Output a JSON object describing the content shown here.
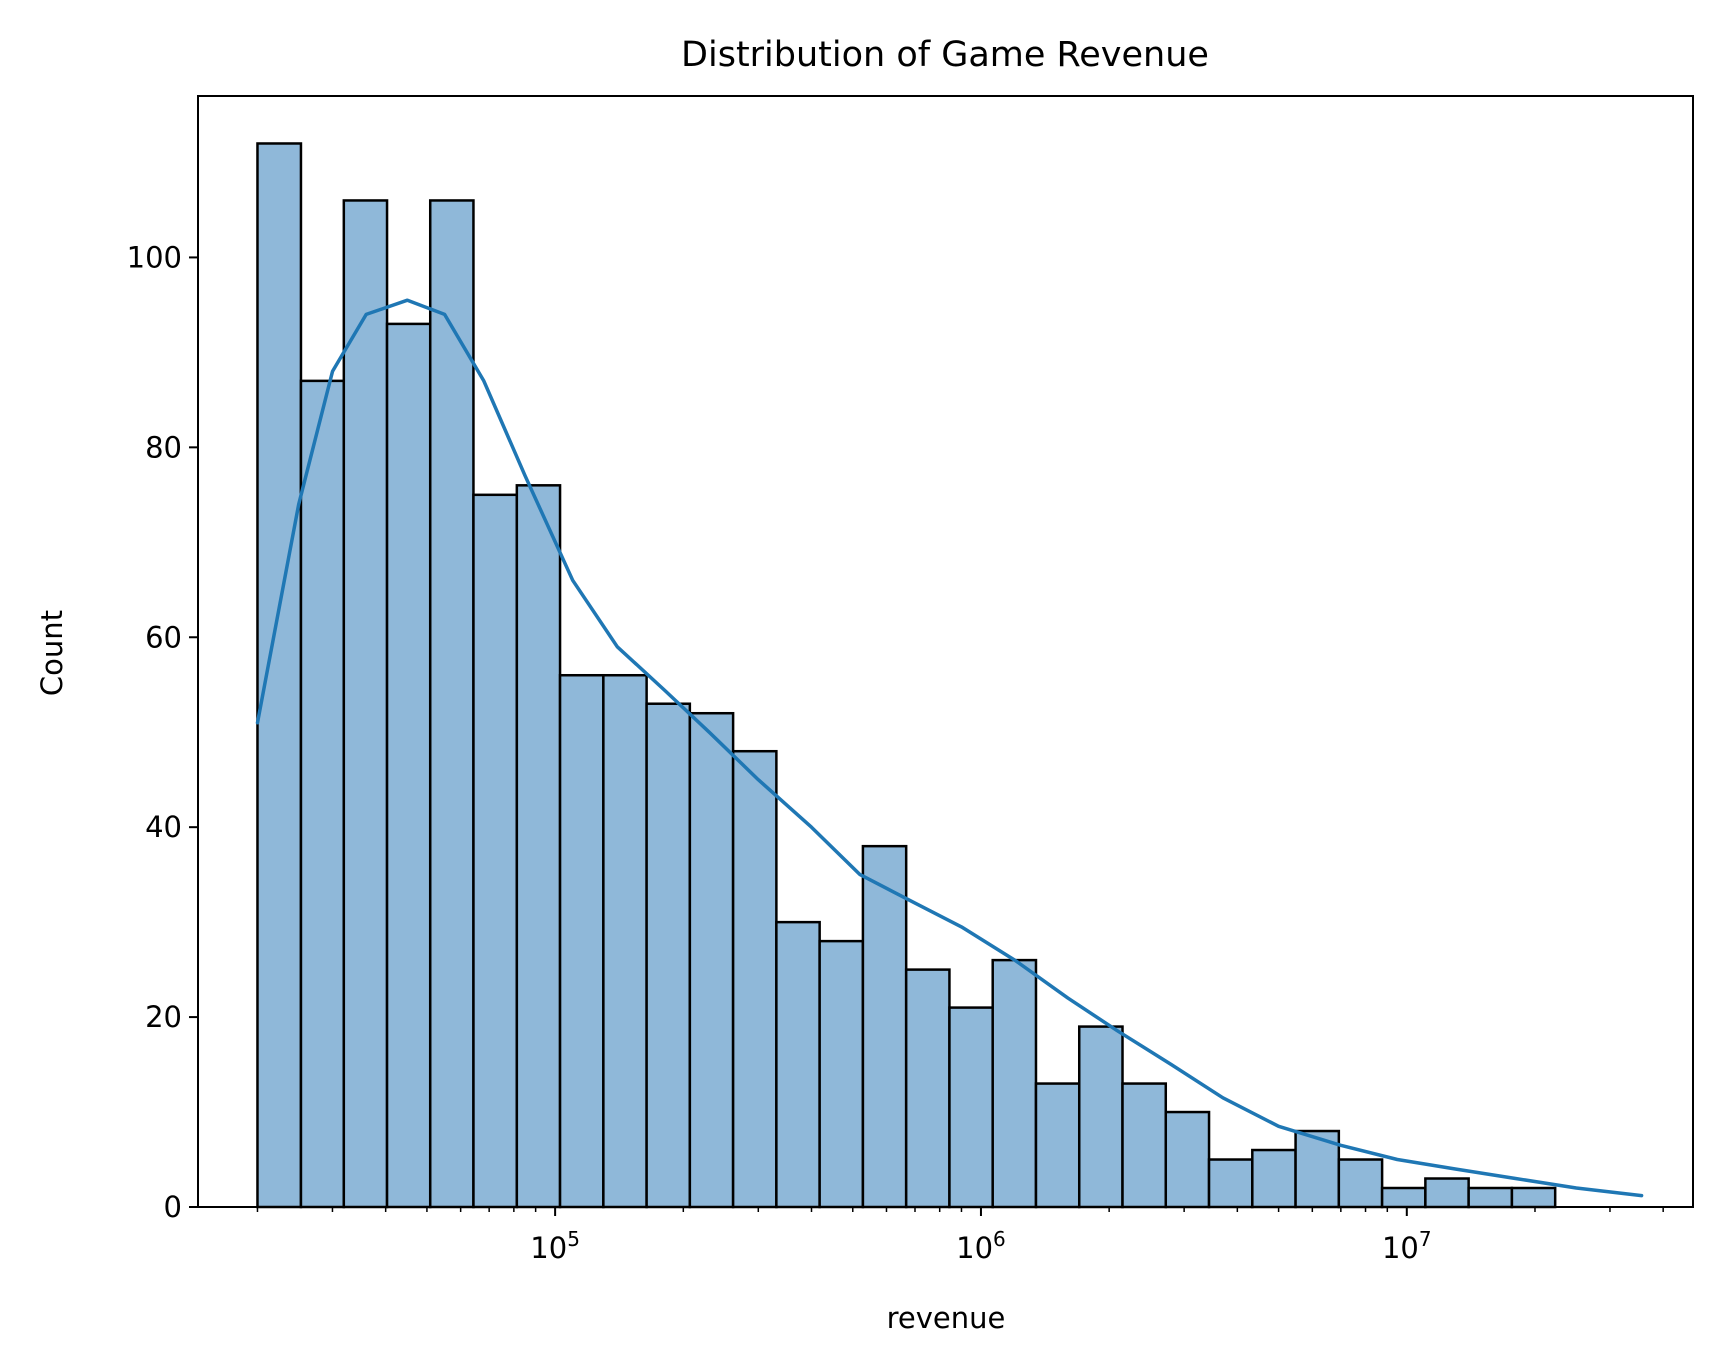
{
  "chart_data": {
    "type": "histogram",
    "title": "Distribution of Game Revenue",
    "xlabel": "revenue",
    "ylabel": "Count",
    "x_scale": "log",
    "xlim": [
      14500,
      47000000
    ],
    "ylim": [
      0,
      117
    ],
    "bar_color": "#8fb8d9",
    "bar_edge_color": "#000000",
    "kde_color": "#1f77b4",
    "grid": false,
    "legend": "none",
    "x_ticks": [
      {
        "value": 100000,
        "base": "10",
        "exp": "5"
      },
      {
        "value": 1000000,
        "base": "10",
        "exp": "6"
      },
      {
        "value": 10000000,
        "base": "10",
        "exp": "7"
      }
    ],
    "y_ticks": [
      0,
      20,
      40,
      60,
      80,
      100
    ],
    "bin_edges": [
      20000,
      25300,
      31900,
      40300,
      50900,
      64300,
      81300,
      102700,
      129800,
      164000,
      207200,
      261800,
      330800,
      418000,
      528200,
      667400,
      843300,
      1065600,
      1346500,
      1701400,
      2149800,
      2716400,
      3432400,
      4337200,
      5480400,
      6924900,
      8750200,
      11056700,
      13971200,
      17653800,
      22306900,
      28186600,
      35616000
    ],
    "counts": [
      112,
      87,
      106,
      93,
      106,
      75,
      76,
      56,
      56,
      53,
      52,
      48,
      30,
      28,
      38,
      25,
      21,
      26,
      13,
      19,
      13,
      10,
      5,
      6,
      8,
      5,
      2,
      3,
      2,
      2,
      0,
      0
    ],
    "kde": {
      "x": [
        20000,
        25000,
        30000,
        36000,
        45000,
        55000,
        68000,
        85000,
        110000,
        140000,
        180000,
        230000,
        300000,
        400000,
        520000,
        700000,
        900000,
        1200000,
        1600000,
        2100000,
        2800000,
        3700000,
        5000000,
        7000000,
        9500000,
        13000000,
        18000000,
        25000000,
        35600000
      ],
      "y": [
        51,
        74,
        88,
        94,
        95.5,
        94,
        87,
        77,
        66,
        59,
        54.5,
        50,
        45,
        40,
        35,
        32,
        29.5,
        26,
        22,
        18.5,
        15,
        11.5,
        8.5,
        6.5,
        5,
        4,
        3,
        2,
        1.2
      ]
    }
  }
}
